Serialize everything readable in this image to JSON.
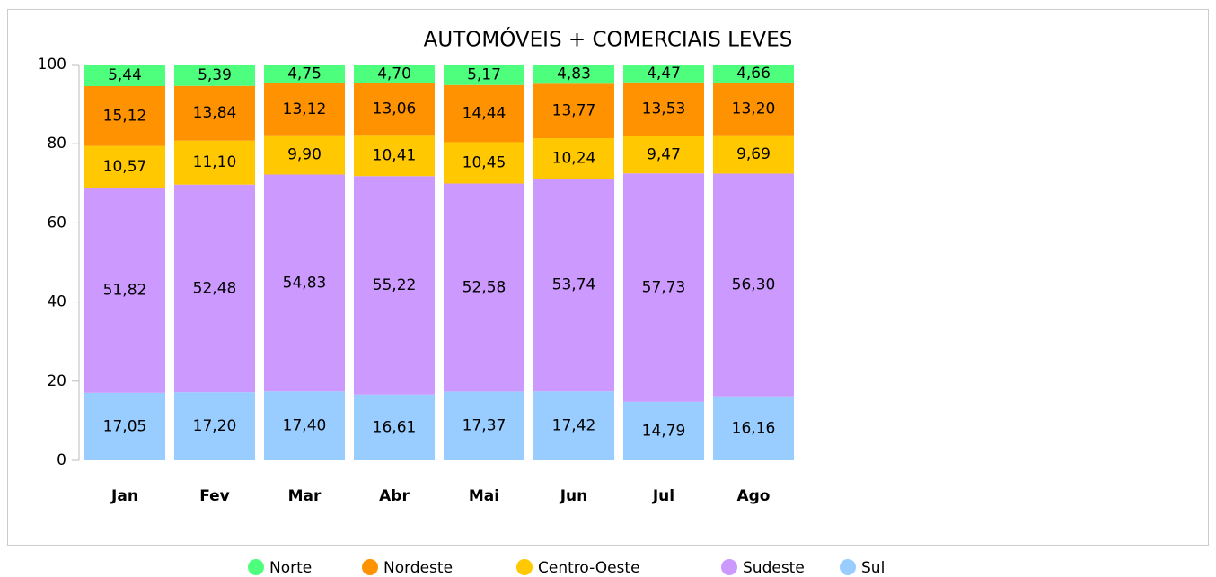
{
  "chart_data": {
    "type": "stacked_bar",
    "title": "AUTOMÓVEIS + COMERCIAIS LEVES",
    "categories": [
      "Jan",
      "Fev",
      "Mar",
      "Abr",
      "Mai",
      "Jun",
      "Jul",
      "Ago"
    ],
    "series": [
      {
        "name": "Norte",
        "color": "#4dff7c",
        "values": [
          5.44,
          5.39,
          4.75,
          4.7,
          5.17,
          4.83,
          4.47,
          4.66
        ],
        "value_labels": [
          "5,44",
          "5,39",
          "4,75",
          "4,70",
          "5,17",
          "4,83",
          "4,47",
          "4,66"
        ]
      },
      {
        "name": "Nordeste",
        "color": "#ff9200",
        "values": [
          15.12,
          13.84,
          13.12,
          13.06,
          14.44,
          13.77,
          13.53,
          13.2
        ],
        "value_labels": [
          "15,12",
          "13,84",
          "13,12",
          "13,06",
          "14,44",
          "13,77",
          "13,53",
          "13,20"
        ]
      },
      {
        "name": "Centro-Oeste",
        "color": "#ffc800",
        "values": [
          10.57,
          11.1,
          9.9,
          10.41,
          10.45,
          10.24,
          9.47,
          9.69
        ],
        "value_labels": [
          "10,57",
          "11,10",
          "9,90",
          "10,41",
          "10,45",
          "10,24",
          "9,47",
          "9,69"
        ]
      },
      {
        "name": "Sudeste",
        "color": "#cc99ff",
        "values": [
          51.82,
          52.48,
          54.83,
          55.22,
          52.58,
          53.74,
          57.73,
          56.3
        ],
        "value_labels": [
          "51,82",
          "52,48",
          "54,83",
          "55,22",
          "52,58",
          "53,74",
          "57,73",
          "56,30"
        ]
      },
      {
        "name": "Sul",
        "color": "#99ccff",
        "values": [
          17.05,
          17.2,
          17.4,
          16.61,
          17.37,
          17.42,
          14.79,
          16.16
        ],
        "value_labels": [
          "17,05",
          "17,20",
          "17,40",
          "16,61",
          "17,37",
          "17,42",
          "14,79",
          "16,16"
        ]
      }
    ],
    "ylim": [
      0,
      100
    ],
    "yticks": [
      0,
      20,
      40,
      60,
      80,
      100
    ]
  }
}
